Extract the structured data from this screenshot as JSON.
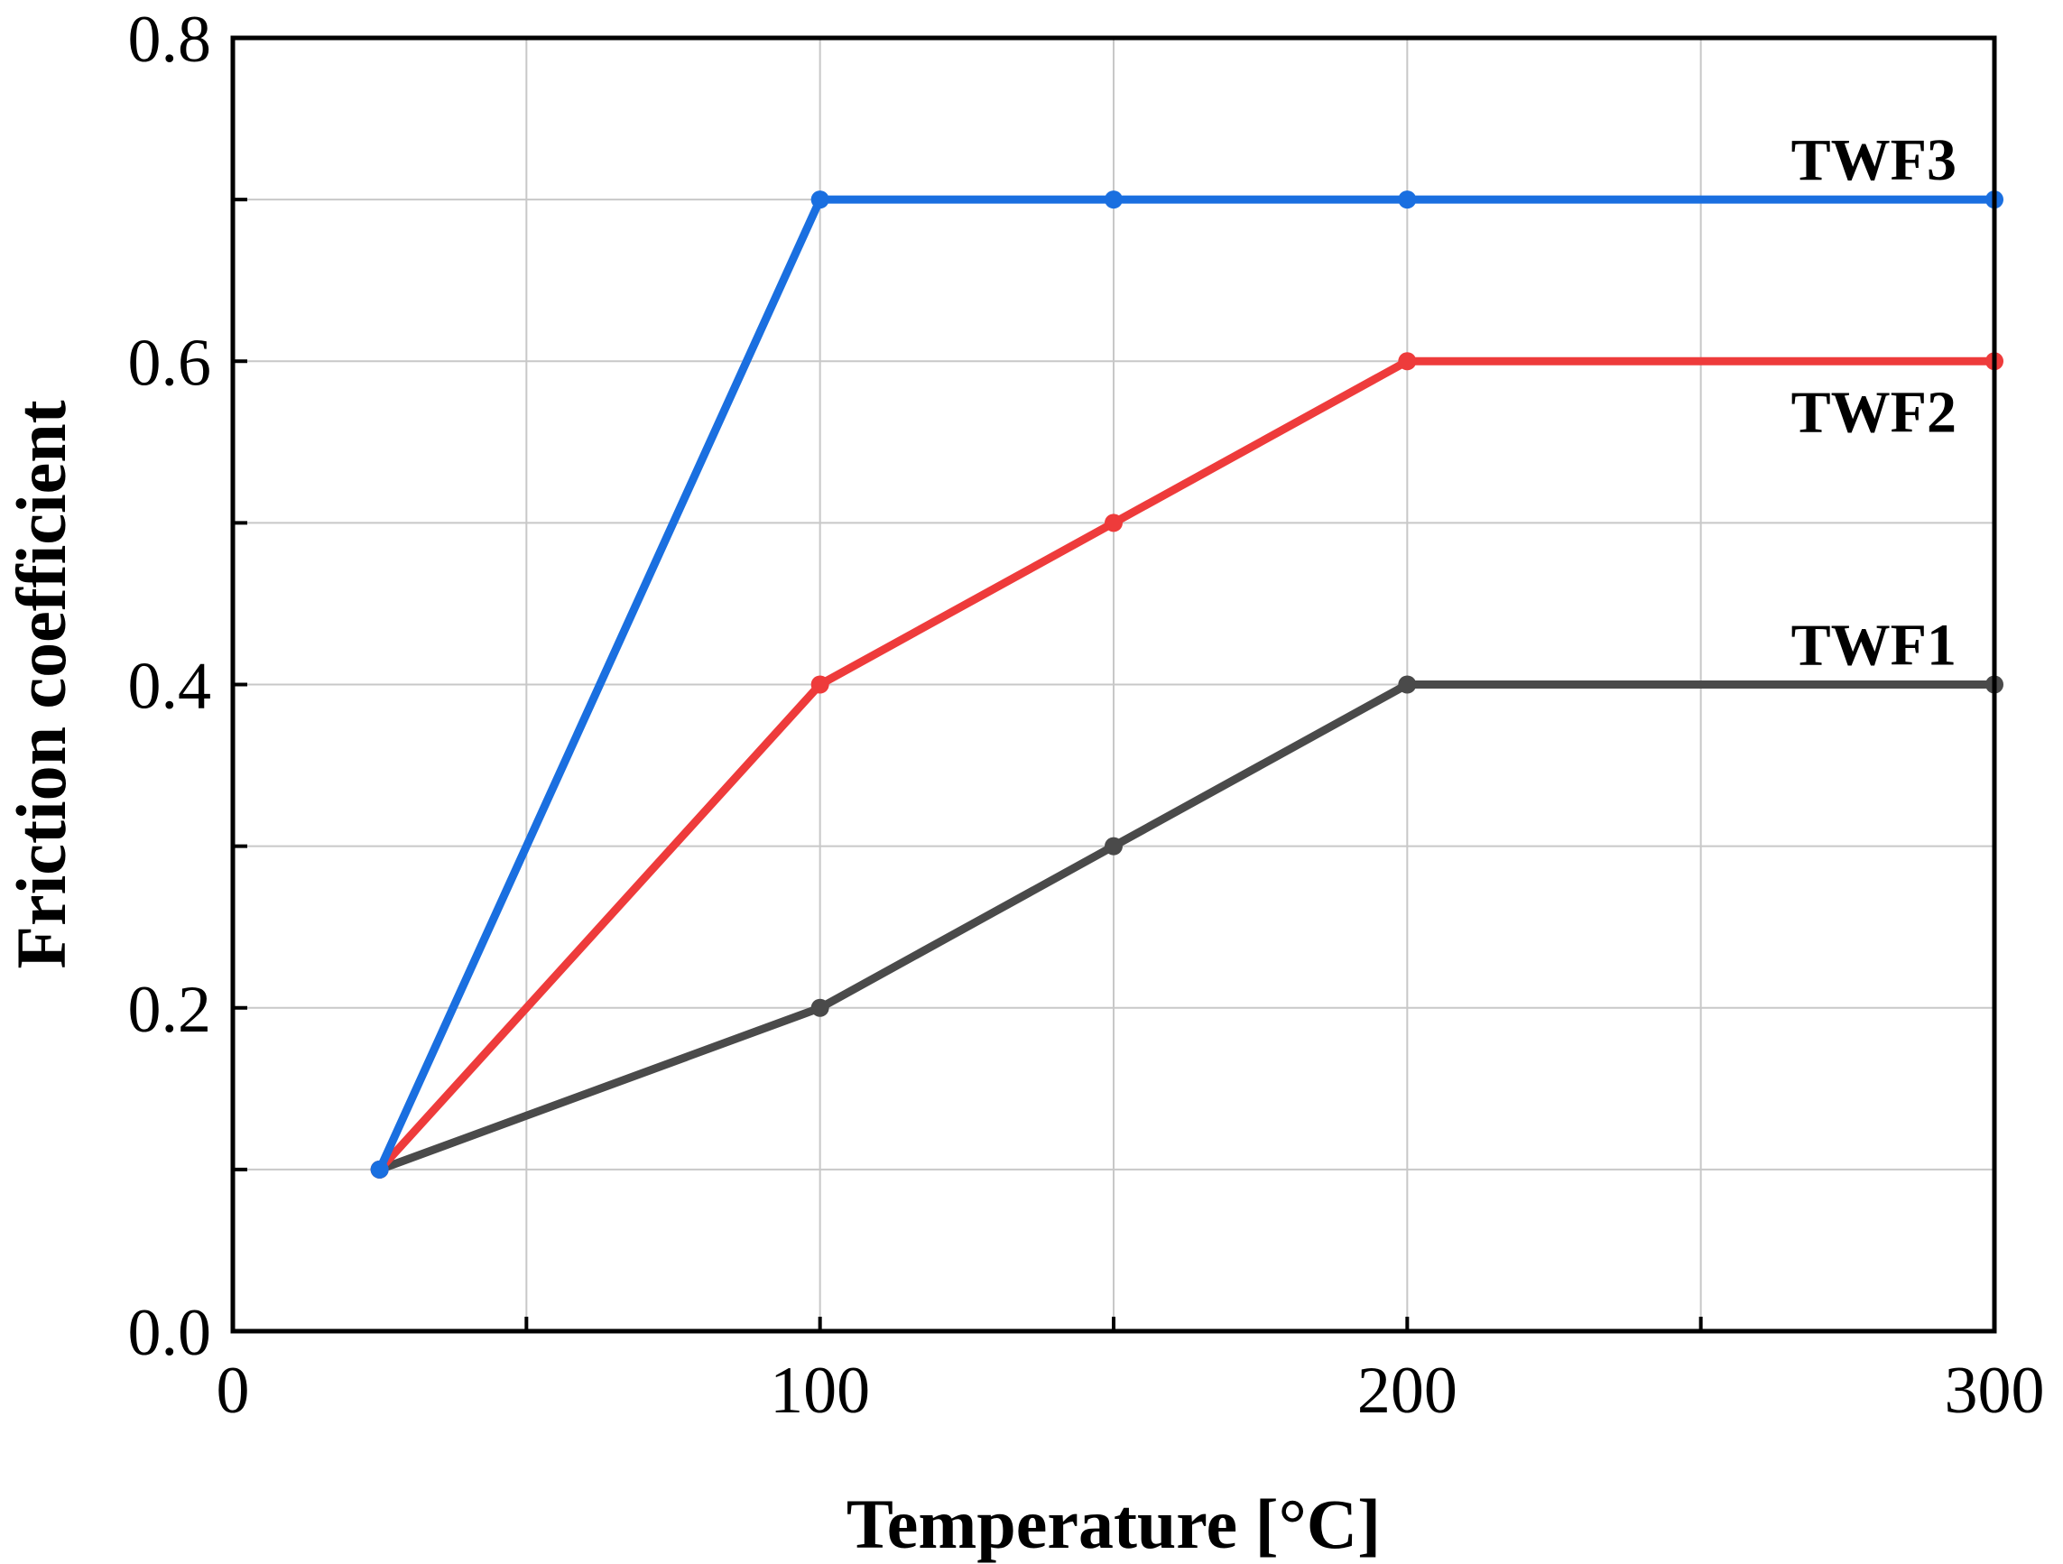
{
  "chart_data": {
    "type": "line",
    "title": "",
    "xlabel": "Temperature [°C]",
    "ylabel": "Friction coefficient",
    "xlim": [
      0,
      300
    ],
    "ylim": [
      0.0,
      0.8
    ],
    "x_ticks": [
      0,
      50,
      100,
      150,
      200,
      250,
      300
    ],
    "x_tick_labels": [
      "0",
      "",
      "100",
      "",
      "200",
      "",
      "300"
    ],
    "y_ticks": [
      0.0,
      0.1,
      0.2,
      0.3,
      0.4,
      0.5,
      0.6,
      0.7,
      0.8
    ],
    "y_tick_labels": [
      "0.0",
      "",
      "0.2",
      "",
      "0.4",
      "",
      "0.6",
      "",
      "0.8"
    ],
    "grid": true,
    "legend": "inline labels at right end of each line",
    "series": [
      {
        "name": "TWF1",
        "color": "#4a4a4a",
        "x": [
          25,
          100,
          150,
          200,
          300
        ],
        "values": [
          0.1,
          0.2,
          0.3,
          0.4,
          0.4
        ]
      },
      {
        "name": "TWF2",
        "color": "#ee3b3b",
        "x": [
          25,
          100,
          150,
          200,
          300
        ],
        "values": [
          0.1,
          0.4,
          0.5,
          0.6,
          0.6
        ]
      },
      {
        "name": "TWF3",
        "color": "#1a6fe0",
        "x": [
          25,
          100,
          150,
          200,
          300
        ],
        "values": [
          0.1,
          0.7,
          0.7,
          0.7,
          0.7
        ]
      }
    ]
  }
}
